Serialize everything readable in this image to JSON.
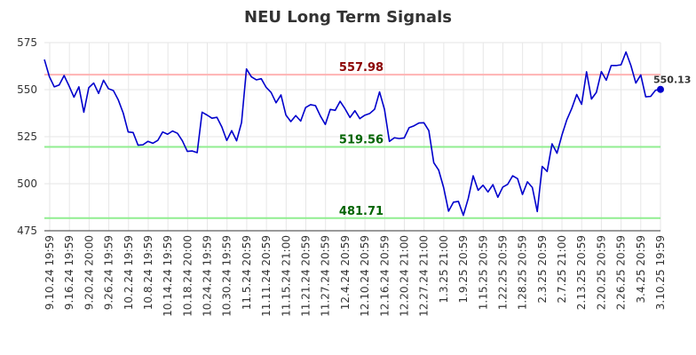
{
  "chart_data": {
    "type": "line",
    "title": "NEU Long Term Signals",
    "ylim": [
      475,
      575
    ],
    "yticks": [
      475,
      500,
      525,
      550,
      575
    ],
    "xtick_labels": [
      "9.10.24 19:59",
      "9.16.24 19:59",
      "9.20.24 20:00",
      "9.26.24 19:59",
      "10.2.24 19:59",
      "10.8.24 19:59",
      "10.14.24 19:59",
      "10.18.24 20:00",
      "10.24.24 19:59",
      "10.30.24 19:59",
      "11.5.24 20:59",
      "11.11.24 20:59",
      "11.15.24 21:00",
      "11.21.24 20:59",
      "11.27.24 20:59",
      "12.4.24 20:59",
      "12.10.24 20:59",
      "12.16.24 20:59",
      "12.20.24 21:00",
      "12.27.24 21:00",
      "1.3.25 21:00",
      "1.9.25 20:59",
      "1.15.25 20:59",
      "1.22.25 20:59",
      "1.28.25 20:59",
      "2.3.25 20:59",
      "2.7.25 21:00",
      "2.13.25 20:59",
      "2.20.25 20:59",
      "2.26.25 20:59",
      "3.4.25 20:59",
      "3.10.25 19:59"
    ],
    "grid": true,
    "series": [
      {
        "color": "#0000cc",
        "values": [
          566,
          557,
          551.5,
          552.5,
          557.5,
          552,
          546,
          551.5,
          538,
          551,
          553.5,
          548,
          555,
          550.5,
          549.5,
          544.5,
          537.5,
          527.5,
          527.2,
          520.5,
          520.7,
          522.5,
          521.5,
          523,
          527.5,
          526.3,
          528,
          526.8,
          522.8,
          517.2,
          517.4,
          516.5,
          538,
          536.5,
          534.8,
          535.3,
          530.2,
          523,
          528.2,
          522.8,
          532.5,
          561,
          556.8,
          555.2,
          555.8,
          551.2,
          548.5,
          543,
          547.2,
          536.5,
          533,
          536.2,
          533.3,
          540.5,
          542,
          541.5,
          536,
          531.5,
          539.5,
          539,
          543.8,
          539.8,
          535.2,
          538.8,
          534.6,
          536.4,
          537.3,
          539.6,
          548.8,
          539.5,
          522.5,
          524.4,
          524,
          524.3,
          529.8,
          530.8,
          532.3,
          532.4,
          528.2,
          511.2,
          507.2,
          498,
          485.4,
          490.2,
          490.6,
          483.2,
          492.2,
          504.2,
          496.5,
          499.2,
          495.6,
          499.5,
          492.8,
          498.2,
          499.7,
          504.2,
          502.7,
          494.3,
          501,
          498,
          485.2,
          509.2,
          506.5,
          521.2,
          516.2,
          525.8,
          534,
          540,
          547.4,
          542.2,
          559.5,
          545,
          548.6,
          559.6,
          555,
          562.8,
          562.8,
          563.2,
          570,
          562.8,
          553.5,
          557.8,
          546.2,
          546.4,
          549.7,
          550.13
        ]
      }
    ],
    "reference_lines": [
      {
        "value": 557.98,
        "label": "557.98",
        "color": "#ffb3b3",
        "label_color": "#8b0000"
      },
      {
        "value": 519.56,
        "label": "519.56",
        "color": "#90ee90",
        "label_color": "#006400"
      },
      {
        "value": 481.71,
        "label": "481.71",
        "color": "#90ee90",
        "label_color": "#006400"
      }
    ],
    "last_value_label": "550.13"
  }
}
